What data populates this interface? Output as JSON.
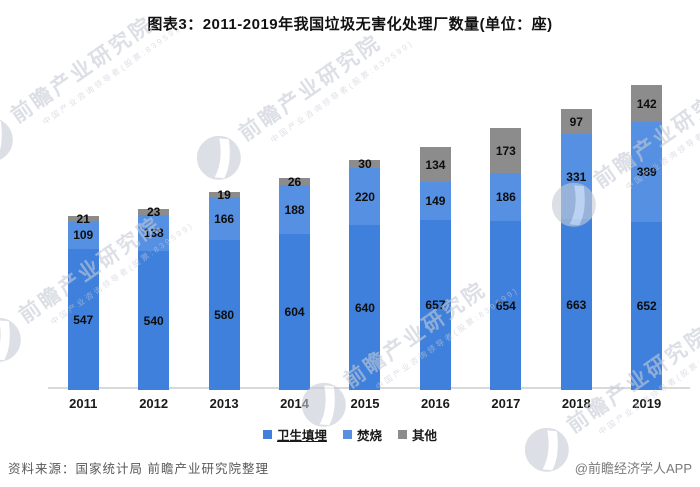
{
  "header": {
    "title": "图表3：2011-2019年我国垃圾无害化处理厂数量(单位：座)"
  },
  "chart_data": {
    "type": "bar",
    "stacked": true,
    "title": "图表3：2011-2019年我国垃圾无害化处理厂数量(单位：座)",
    "categories": [
      "2011",
      "2012",
      "2013",
      "2014",
      "2015",
      "2016",
      "2017",
      "2018",
      "2019"
    ],
    "series": [
      {
        "name": "卫生填埋",
        "color": "#3e80dc",
        "values": [
          547,
          540,
          580,
          604,
          640,
          657,
          654,
          663,
          652
        ]
      },
      {
        "name": "焚烧",
        "color": "#5590e2",
        "values": [
          109,
          138,
          166,
          188,
          220,
          149,
          186,
          331,
          389
        ]
      },
      {
        "name": "其他",
        "color": "#8c8c8c",
        "values": [
          21,
          23,
          19,
          26,
          30,
          134,
          173,
          97,
          142
        ]
      }
    ],
    "xlabel": "",
    "ylabel": "",
    "unit": "座",
    "grid": false,
    "legend_position": "bottom",
    "data_labels": true
  },
  "legend": {
    "items": [
      {
        "label": "卫生填埋",
        "color": "#3e80dc",
        "underline": true
      },
      {
        "label": "焚烧",
        "color": "#5590e2",
        "underline": false
      },
      {
        "label": "其他",
        "color": "#8c8c8c",
        "underline": false
      }
    ]
  },
  "footer": {
    "source": "资料来源：国家统计局 前瞻产业研究院整理",
    "credit": "@前瞻经济学人APP"
  },
  "watermark": {
    "logo_text": "前瞻产业研究院",
    "sub_text": "中国产业咨询领导者(股票:839599)"
  },
  "colors": {
    "axis_line": "#d9d9d9",
    "title_text": "#111111",
    "source_text": "#595959",
    "credit_text": "#7a7a7a"
  }
}
